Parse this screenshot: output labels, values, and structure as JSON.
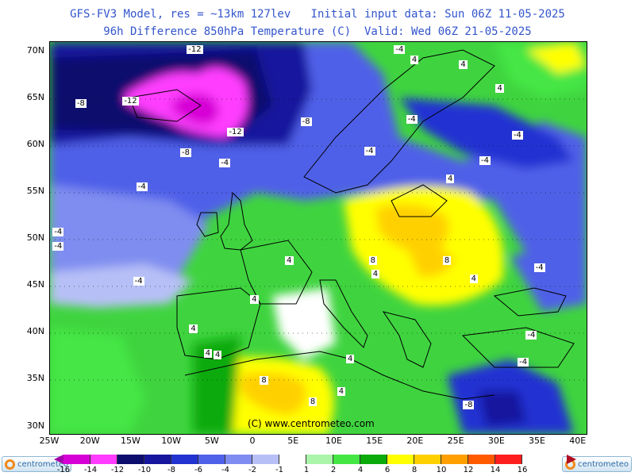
{
  "header": {
    "title_line1": "GFS-FV3 Model, res = ~13km 127lev   Initial input data: Sun 06Z 11-05-2025",
    "title_line2": "96h Difference 850hPa Temperature (C)  Valid: Wed 06Z 21-05-2025"
  },
  "map": {
    "lat_labels": [
      "70N",
      "65N",
      "60N",
      "55N",
      "50N",
      "45N",
      "40N",
      "35N",
      "30N"
    ],
    "lon_labels": [
      "25W",
      "20W",
      "15W",
      "10W",
      "5W",
      "0",
      "5E",
      "10E",
      "15E",
      "20E",
      "25E",
      "30E",
      "35E",
      "40E"
    ],
    "copyright": "(C) www.centrometeo.com",
    "contour_labels": [
      {
        "text": "-12",
        "lon": -7.5,
        "lat": 70.1
      },
      {
        "text": "-12",
        "lon": -15.4,
        "lat": 64.6
      },
      {
        "text": "-12",
        "lon": -2.5,
        "lat": 61.3
      },
      {
        "text": "-8",
        "lon": -21.2,
        "lat": 64.3
      },
      {
        "text": "-8",
        "lon": 6.5,
        "lat": 62.4
      },
      {
        "text": "-8",
        "lon": -8.3,
        "lat": 59.1
      },
      {
        "text": "-4",
        "lon": 18,
        "lat": 70.1
      },
      {
        "text": "4",
        "lon": 20,
        "lat": 69
      },
      {
        "text": "4",
        "lon": 26,
        "lat": 68.5
      },
      {
        "text": "4",
        "lon": 30.5,
        "lat": 65.9
      },
      {
        "text": "-4",
        "lon": 19.5,
        "lat": 62.6
      },
      {
        "text": "-4",
        "lon": 32.5,
        "lat": 60.9
      },
      {
        "text": "-4",
        "lon": 14.3,
        "lat": 59.2
      },
      {
        "text": "-4",
        "lon": 28.5,
        "lat": 58.2
      },
      {
        "text": "-4",
        "lon": -3.5,
        "lat": 58
      },
      {
        "text": "-4",
        "lon": -13.7,
        "lat": 55.4
      },
      {
        "text": "4",
        "lon": 24.4,
        "lat": 56.3
      },
      {
        "text": "-4",
        "lon": -24,
        "lat": 50.6
      },
      {
        "text": "-4",
        "lon": -24,
        "lat": 49.1
      },
      {
        "text": "-4",
        "lon": -14.1,
        "lat": 45.4
      },
      {
        "text": "4",
        "lon": 4.6,
        "lat": 47.6
      },
      {
        "text": "8",
        "lon": 14.9,
        "lat": 47.6
      },
      {
        "text": "8",
        "lon": 24,
        "lat": 47.6
      },
      {
        "text": "4",
        "lon": 15.2,
        "lat": 46.1
      },
      {
        "text": "-4",
        "lon": 35.2,
        "lat": 46.8
      },
      {
        "text": "4",
        "lon": 27.3,
        "lat": 45.6
      },
      {
        "text": "4",
        "lon": 0.3,
        "lat": 43.4
      },
      {
        "text": "4",
        "lon": -7.2,
        "lat": 40.3
      },
      {
        "text": "-4",
        "lon": 34.2,
        "lat": 39.6
      },
      {
        "text": "4",
        "lon": -5.4,
        "lat": 37.7
      },
      {
        "text": "4",
        "lon": -4.2,
        "lat": 37.5
      },
      {
        "text": "4",
        "lon": 12.1,
        "lat": 37.1
      },
      {
        "text": "-4",
        "lon": 33.2,
        "lat": 36.7
      },
      {
        "text": "8",
        "lon": 1.5,
        "lat": 34.8
      },
      {
        "text": "4",
        "lon": 11,
        "lat": 33.6
      },
      {
        "text": "8",
        "lon": 7.5,
        "lat": 32.5
      },
      {
        "text": "-8",
        "lon": 26.5,
        "lat": 32.2
      }
    ]
  },
  "legend": {
    "ticks": [
      "-16",
      "-14",
      "-12",
      "-10",
      "-8",
      "-6",
      "-4",
      "-2",
      "-1",
      "1",
      "2",
      "4",
      "6",
      "8",
      "10",
      "12",
      "14",
      "16"
    ],
    "colors": [
      "#a400ad",
      "#d600d6",
      "#ff3cff",
      "#0d0d6e",
      "#16169e",
      "#2233d2",
      "#4f61e8",
      "#7f8df0",
      "#b7c0f6",
      "#ffffff",
      "#aaf5aa",
      "#44e644",
      "#0aaa0a",
      "#ffff00",
      "#ffd000",
      "#ffa000",
      "#ff5a00",
      "#ff1e1e",
      "#b00d20"
    ],
    "brand_left": "centrometeo",
    "brand_right": "centrometeo"
  }
}
